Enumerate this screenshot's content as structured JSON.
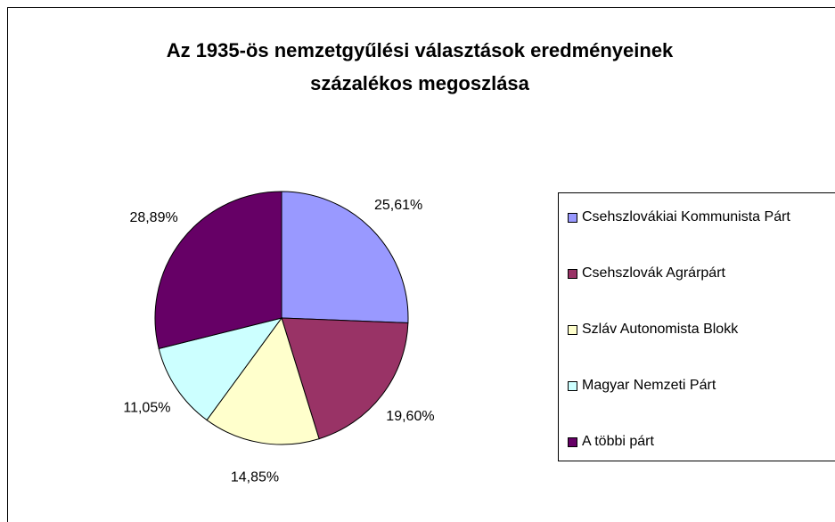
{
  "chart_data": {
    "type": "pie",
    "title": "Az 1935-ös nemzetgyűlési választások eredményeinek százalékos megoszlása",
    "categories": [
      "Csehszlovákiai Kommunista Párt",
      "Csehszlovák Agrárpárt",
      "Szláv Autonomista Blokk",
      "Magyar Nemzeti Párt",
      "A többi párt"
    ],
    "values": [
      25.61,
      19.6,
      14.85,
      11.05,
      28.89
    ],
    "value_labels": [
      "25,61%",
      "19,60%",
      "14,85%",
      "11,05%",
      "28,89%"
    ],
    "colors": [
      "#9999ff",
      "#993366",
      "#ffffcc",
      "#ccffff",
      "#660066"
    ],
    "legend": "right"
  }
}
